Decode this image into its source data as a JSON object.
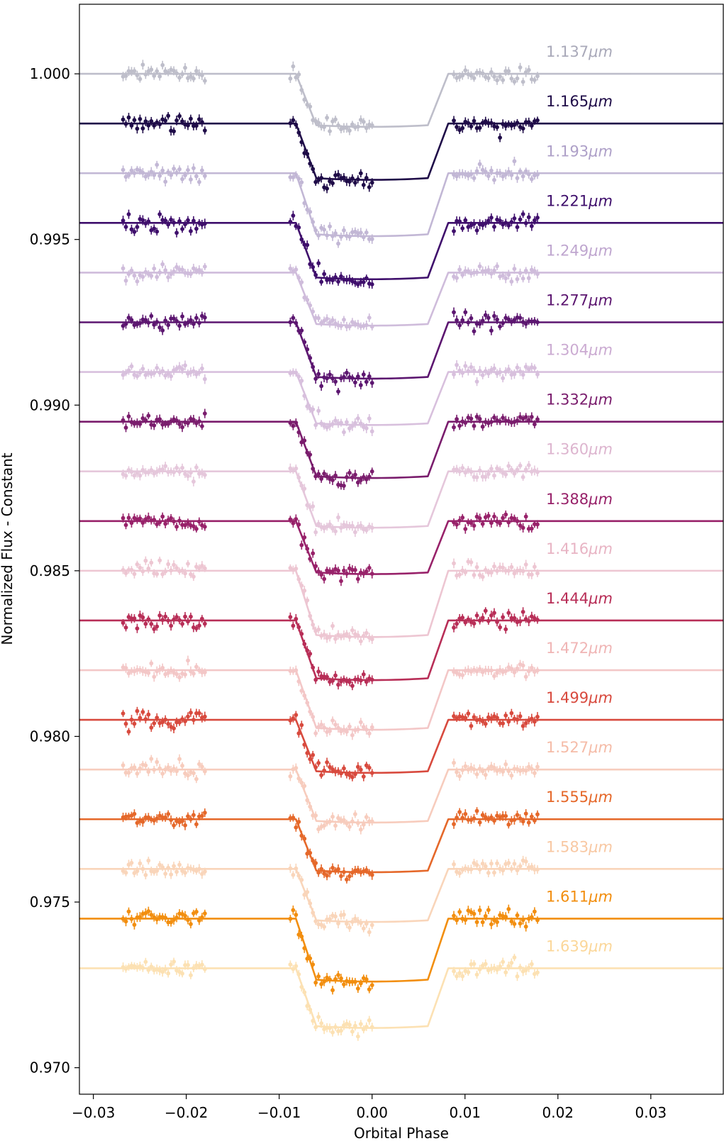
{
  "chart_data": {
    "type": "line",
    "title": "",
    "xlabel": "Orbital Phase",
    "ylabel": "Normalized Flux - Constant",
    "xlim": [
      -0.0315,
      0.0378
    ],
    "ylim": [
      0.9692,
      1.0021
    ],
    "x_ticks": [
      -0.03,
      -0.02,
      -0.01,
      0.0,
      0.01,
      0.02,
      0.03
    ],
    "x_tick_labels": [
      "−0.03",
      "−0.02",
      "−0.01",
      "0.00",
      "0.01",
      "0.02",
      "0.03"
    ],
    "y_ticks": [
      0.97,
      0.975,
      0.98,
      0.985,
      0.99,
      0.995,
      1.0
    ],
    "y_tick_labels": [
      "0.970",
      "0.975",
      "0.980",
      "0.985",
      "0.990",
      "0.995",
      "1.000"
    ],
    "grid": false,
    "model_shape": {
      "contact_phases": [
        -0.0082,
        -0.006,
        0.006,
        0.0082
      ],
      "mid_phase": 0.0,
      "edge_depth_fraction": 0.97
    },
    "data_windows": [
      [
        -0.0268,
        -0.018
      ],
      [
        -0.0088,
        0.0
      ],
      [
        0.0088,
        0.0178
      ]
    ],
    "series": [
      {
        "name": "1.137μm",
        "label": "1.137",
        "unit": "μm",
        "color": "#a9a9b9",
        "alpha": 0.75,
        "baseline": 1.0,
        "depth": 0.0016
      },
      {
        "name": "1.165μm",
        "label": "1.165",
        "unit": "μm",
        "color": "#1f0c48",
        "alpha": 1.0,
        "baseline": 0.9985,
        "depth": 0.0017
      },
      {
        "name": "1.193μm",
        "label": "1.193",
        "unit": "μm",
        "color": "#aea0c8",
        "alpha": 0.75,
        "baseline": 0.997,
        "depth": 0.0019
      },
      {
        "name": "1.221μm",
        "label": "1.221",
        "unit": "μm",
        "color": "#3f0f6c",
        "alpha": 1.0,
        "baseline": 0.9955,
        "depth": 0.0017
      },
      {
        "name": "1.249μm",
        "label": "1.249",
        "unit": "μm",
        "color": "#bfa6cf",
        "alpha": 0.75,
        "baseline": 0.994,
        "depth": 0.0016
      },
      {
        "name": "1.277μm",
        "label": "1.277",
        "unit": "μm",
        "color": "#5c1670",
        "alpha": 1.0,
        "baseline": 0.9925,
        "depth": 0.0017
      },
      {
        "name": "1.304μm",
        "label": "1.304",
        "unit": "μm",
        "color": "#cbabd2",
        "alpha": 0.75,
        "baseline": 0.991,
        "depth": 0.0016
      },
      {
        "name": "1.332μm",
        "label": "1.332",
        "unit": "μm",
        "color": "#7a1d6d",
        "alpha": 1.0,
        "baseline": 0.9895,
        "depth": 0.0017
      },
      {
        "name": "1.360μm",
        "label": "1.360",
        "unit": "μm",
        "color": "#ddb5cf",
        "alpha": 0.75,
        "baseline": 0.988,
        "depth": 0.0017
      },
      {
        "name": "1.388μm",
        "label": "1.388",
        "unit": "μm",
        "color": "#98226a",
        "alpha": 1.0,
        "baseline": 0.9865,
        "depth": 0.0016
      },
      {
        "name": "1.416μm",
        "label": "1.416",
        "unit": "μm",
        "color": "#e8b4c4",
        "alpha": 0.75,
        "baseline": 0.985,
        "depth": 0.002
      },
      {
        "name": "1.444μm",
        "label": "1.444",
        "unit": "μm",
        "color": "#b82e57",
        "alpha": 1.0,
        "baseline": 0.9835,
        "depth": 0.0018
      },
      {
        "name": "1.472μm",
        "label": "1.472",
        "unit": "μm",
        "color": "#f0b5b5",
        "alpha": 0.75,
        "baseline": 0.982,
        "depth": 0.0018
      },
      {
        "name": "1.499μm",
        "label": "1.499",
        "unit": "μm",
        "color": "#d84a3e",
        "alpha": 1.0,
        "baseline": 0.9805,
        "depth": 0.0016
      },
      {
        "name": "1.527μm",
        "label": "1.527",
        "unit": "μm",
        "color": "#f5bca8",
        "alpha": 0.75,
        "baseline": 0.979,
        "depth": 0.0016
      },
      {
        "name": "1.555μm",
        "label": "1.555",
        "unit": "μm",
        "color": "#e5682a",
        "alpha": 1.0,
        "baseline": 0.9775,
        "depth": 0.0016
      },
      {
        "name": "1.583μm",
        "label": "1.583",
        "unit": "μm",
        "color": "#f8c8a3",
        "alpha": 0.75,
        "baseline": 0.976,
        "depth": 0.0016
      },
      {
        "name": "1.611μm",
        "label": "1.611",
        "unit": "μm",
        "color": "#f28e0f",
        "alpha": 1.0,
        "baseline": 0.9745,
        "depth": 0.0019
      },
      {
        "name": "1.639μm",
        "label": "1.639",
        "unit": "μm",
        "color": "#fbd79a",
        "alpha": 0.75,
        "baseline": 0.973,
        "depth": 0.0018
      }
    ]
  }
}
